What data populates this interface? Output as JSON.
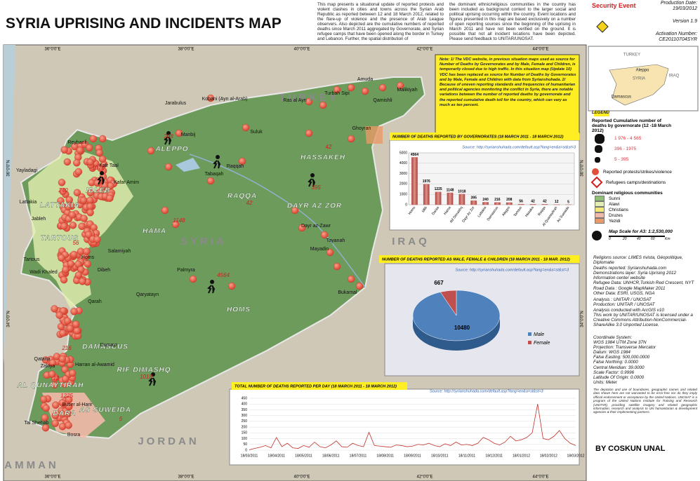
{
  "header": {
    "title": "SYRIA UPRISING AND INCIDENTS MAP",
    "description": [
      "This map presents a situational update of reported protests and violent clashes in cities and towns across the Syrian Arab Republic as reported between 12 and 18 March 2012, related to the flare-up of violence and the presence of Arab League observers. Also depicted are the cumulative numbers of reported deaths since March 2011 aggregated by Governorate, and Syrian refugee camps that have been opened along the border in Turkey and Lebanon. Further, the spatial distribution of",
      "the dominant ethnic/religious communities in the country has been included as background context to the larger social and political uprising occurring within the country. Event locations and figures presented in this map are based exclusively on a number of open reporting sources since the beginning of the uprising in March 2011 and have not been verified on the ground. It is possible that not all incident locations have been depicted. Please send feedback to UNITAR/UNOSAT."
    ],
    "security_event": "Security Event",
    "production_date_label": "Production Date:",
    "production_date": "19/03/2012",
    "version": "Version 1.9",
    "activation_label": "Activation Number:",
    "activation_number": "CE20110704SYR"
  },
  "note": "Note: 1/ The VDC website, in previous situation maps used as source for Number of Deaths by Governorates and by Male, Female and Children, is temporarily closed due to high traffic. In this situation map (Update 10) VDC has been replaced as source for Number of Deaths by Governorates and by Male, Female and Children with data from Syrianshuhada. 2/ Because of uneven reporting standards and frequencies of humanitarian and political agencies monitoring the conflict in Syria, there are notable variations between the number of reported deaths by governorate and the reported cumulative death toll for the country, which can vary as much as ten percent.",
  "map": {
    "graticule": {
      "lon": [
        "36°0'0\"E",
        "38°0'0\"E",
        "40°0'0\"E",
        "42°0'0\"E",
        "44°0'0\"E"
      ],
      "lat": [
        "36°0'0\"N",
        "34°0'0\"N"
      ]
    },
    "places": [
      "TURKEY",
      "SYRIA",
      "IRAQ",
      "JORDAN",
      "ALEPPO",
      "IDLEB",
      "LATTAKIA",
      "TARTOUS",
      "HAMA",
      "HOMS",
      "DAMASCUS",
      "RIF DIMASHQ",
      "AL QUNAYTIRAH",
      "DARA",
      "AS SUWEIDA",
      "RAQQA",
      "DAYR AZ ZOR",
      "HASSAKEH",
      "Amuda",
      "Malikiyah",
      "Qamishli",
      "Kobani (Ayn al-Arab)",
      "Jarabulus",
      "Ras al Ayn",
      "Turbah Sipi",
      "Suluk",
      "Ghoyran",
      "Manbij",
      "Raqqah",
      "Tabaqah",
      "Dayr az-Zawr",
      "Mayadin",
      "Tayanah",
      "Bukamal",
      "Palmyra",
      "Qaryatayn",
      "Salamiyah",
      "Homs",
      "Dumayr",
      "Harran al-Awamid",
      "Buser al-Harir",
      "Bosra",
      "Tal Shehab",
      "Qatana",
      "Zakiya",
      "Jableh",
      "Lattakia",
      "Tartous",
      "Wadi Khaled",
      "Yayladagi",
      "Reyhanli",
      "Kafr Taal",
      "Kafar Amim",
      "Qarah",
      "Dibeh",
      "AMMAN"
    ]
  },
  "inset": {
    "labels": [
      "TURKEY",
      "SYRIA",
      "IRAQ",
      "Damascus",
      "Aleppo"
    ]
  },
  "legend": {
    "title": "LEGEND",
    "deaths_title": "Reported Cumulative number of deaths by governorate (12 -18 March 2012)",
    "classes": [
      {
        "label": "1 976 - 4 565",
        "color": "#e0303a"
      },
      {
        "label": "396 - 1975",
        "color": "#e0303a"
      },
      {
        "label": "5 - 395",
        "color": "#e0303a"
      }
    ],
    "protests": "Reported protests/strikes/violence",
    "refugees": "Refugees camps/destinations",
    "religion_title": "Dominant religious communities",
    "religions": [
      {
        "label": "Sunni",
        "color": "#8fbf72"
      },
      {
        "label": "Alawi",
        "color": "#e3efb2"
      },
      {
        "label": "Christians",
        "color": "#f3e77a"
      },
      {
        "label": "Druzes",
        "color": "#f2b9a9"
      },
      {
        "label": "Yezidi",
        "color": "#e89a68"
      }
    ],
    "scale_title": "Map Scale for A3: 1:2,530,000",
    "scale_unit": "Km",
    "scale_ticks": [
      0,
      20,
      40,
      60
    ]
  },
  "sources": [
    "Religions source: LIMES rivista, Géopolitique, Diplomatie",
    "Deaths reported: Syrianshuhada.com",
    "Demonstrations layer: Syria Uprising 2012 Information center website",
    "Refugee Data: UNHCR,Turkish Red Crescent, NYT",
    "Road Data : Google MapMaker 2011",
    "Other Data: ESRI, USGS, NGA"
  ],
  "analysis": [
    "Analysis : UNITAR / UNOSAT",
    "Production: UNITAR / UNOSAT",
    "Analysis conducted with ArcGIS v10",
    "This work by UNITAR/UNOSAT is licensed under a Creative Commons Attribution-NonCommercial-ShareAlike 3.0 Unported License."
  ],
  "coordinates": [
    "Coordinate System:",
    "WGS 1984 UTM Zone 37N",
    "Projection: Transverse Mercator",
    "Datum: WGS 1984",
    "False Easting: 500,000.0000",
    "False Northing: 0.0000",
    "Central Meridian: 39.0000",
    "Scale Factor: 0.9996",
    "Latitude Of Origin: 0.0000",
    "Units: Meter"
  ],
  "disclaimer": "The depiction and use of boundaries, geographic names and related data shown here are not warranted to be error-free nor do they imply official endorsement or acceptance by the United Nations. UNOSAT is a program of the United Nations Institute for Training and Research (UNITAR), providing satellite imagery and related geographic information, research and analysis to UN humanitarian & development agencies & their implementing partners.",
  "author": "BY COSKUN UNAL",
  "chart_data": [
    {
      "type": "bar",
      "title": "NUMBER OF DEATHS REPORTED BY GOVERNORATES (18 MARCH 2011 - 18 MARCH 2012)",
      "source": "Source: http://syrianshuhada.com/default.asp?lang=en&a=st&st=3",
      "categories": [
        "Homs",
        "Idlib",
        "Daraa",
        "Hama",
        "Rif Dimashq",
        "Dayr Az Zor",
        "Lattakia",
        "Damascus",
        "Aleppo",
        "Tartous",
        "Hasaka",
        "Raqqa",
        "Al Quanaytirah",
        "As Suwaida"
      ],
      "values": [
        4564,
        1976,
        1225,
        1148,
        1018,
        395,
        240,
        216,
        208,
        56,
        42,
        42,
        12,
        5
      ],
      "color": "#c0655e",
      "ylim": [
        0,
        5000
      ],
      "yticks": [
        0,
        1000,
        2000,
        3000,
        4000,
        5000
      ]
    },
    {
      "type": "pie",
      "title": "NUMBER OF DEATHS REPORTED AS MALE, FEMALE & CHILDREN (18 MARCH 2011 - 18 MAR. 2012)",
      "source": "Source: http://syrianshuhada.com/default.asp?lang=en&a=st&st=3",
      "categories": [
        "Male",
        "Female"
      ],
      "values": [
        10480,
        667
      ],
      "colors": [
        "#4f81bd",
        "#c0504d"
      ]
    },
    {
      "type": "line",
      "title": "TOTAL NUMBER OF DEATHS REPORTED PER DAY (18 MARCH 2011 - 18 MARCH 2012)",
      "source": "Source: http://syrianshuhada.com/default.asp?lang=en&a=st&st=3",
      "categories": [
        "18/03/2011",
        null,
        null,
        null,
        null,
        "18/04/2011",
        null,
        null,
        null,
        null,
        "18/05/2011",
        null,
        null,
        null,
        null,
        "18/06/2011",
        null,
        null,
        null,
        null,
        "18/07/2011",
        null,
        null,
        null,
        null,
        "18/08/2011",
        null,
        null,
        null,
        null,
        "18/09/2011",
        null,
        null,
        null,
        null,
        "18/10/2011",
        null,
        null,
        null,
        null,
        "18/11/2011",
        null,
        null,
        null,
        null,
        "18/12/2011",
        null,
        null,
        null,
        null,
        "18/01/2012",
        null,
        null,
        null,
        null,
        "18/02/2012",
        null,
        null,
        null,
        null,
        "18/03/2012"
      ],
      "values": [
        3,
        15,
        25,
        40,
        20,
        110,
        30,
        60,
        20,
        15,
        40,
        25,
        70,
        30,
        20,
        45,
        80,
        30,
        25,
        60,
        40,
        30,
        155,
        40,
        35,
        30,
        25,
        45,
        40,
        30,
        35,
        50,
        45,
        60,
        40,
        30,
        55,
        40,
        70,
        45,
        50,
        40,
        60,
        110,
        90,
        60,
        45,
        70,
        120,
        80,
        90,
        110,
        150,
        400,
        100,
        90,
        120,
        170,
        100,
        60,
        40
      ],
      "color": "#c0302a",
      "ylim": [
        0,
        450
      ],
      "yticks": [
        0,
        50,
        100,
        150,
        200,
        250,
        300,
        350,
        400,
        450
      ],
      "grid": true
    }
  ]
}
